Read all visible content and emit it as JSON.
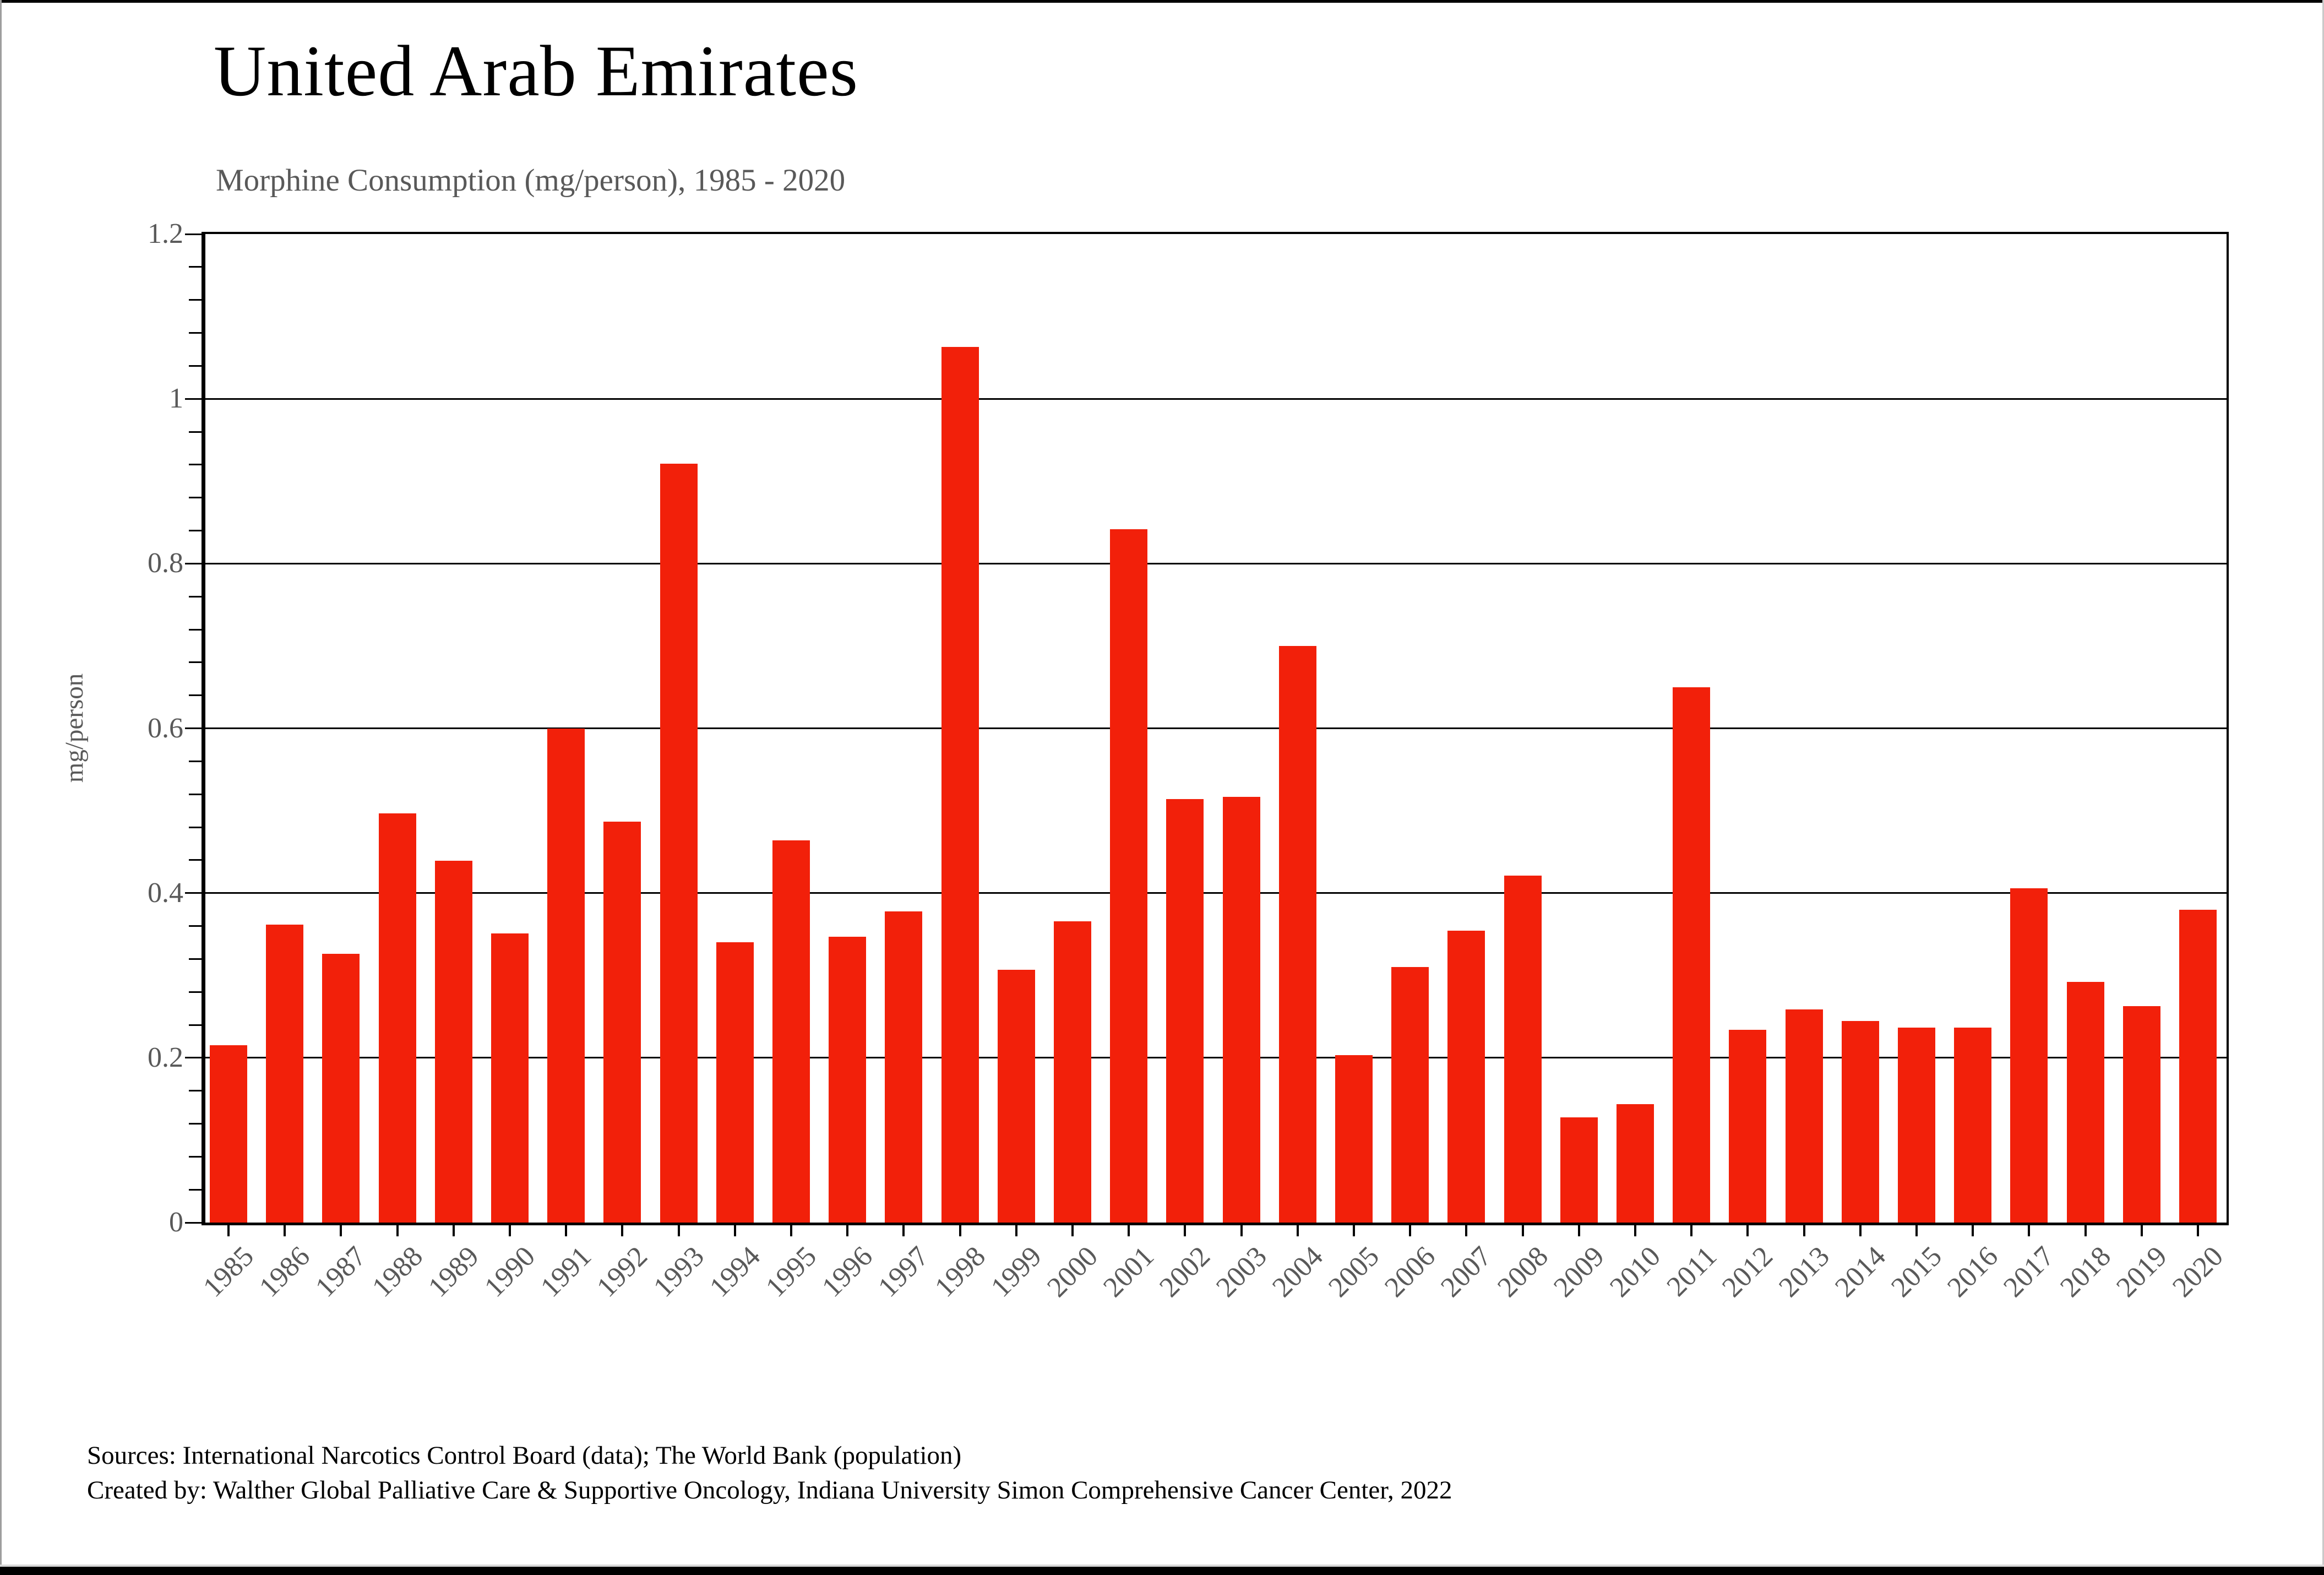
{
  "header": {
    "title": "United Arab Emirates",
    "subtitle": "Morphine Consumption (mg/person), 1985 - 2020"
  },
  "axes": {
    "ylabel": "mg/person",
    "ytick_labels": [
      "0",
      "0.2",
      "0.4",
      "0.6",
      "0.8",
      "1",
      "1.2"
    ]
  },
  "footer": {
    "line1": "Sources: International Narcotics Control Board (data); The World Bank (population)",
    "line2": "Created by: Walther  Global Palliative Care & Supportive Oncology, Indiana University Simon Comprehensive Cancer Center, 2022"
  },
  "chart_data": {
    "type": "bar",
    "title": "United Arab Emirates",
    "subtitle": "Morphine Consumption (mg/person), 1985 - 2020",
    "xlabel": "",
    "ylabel": "mg/person",
    "ylim": [
      0,
      1.2
    ],
    "yticks": [
      0,
      0.2,
      0.4,
      0.6,
      0.8,
      1,
      1.2
    ],
    "ytick_labels": [
      "0",
      "0.2",
      "0.4",
      "0.6",
      "0.8",
      "1",
      "1.2"
    ],
    "minor_tick_step": 0.04,
    "grid": true,
    "legend": "none",
    "bar_color": "#f2200a",
    "categories": [
      "1985",
      "1986",
      "1987",
      "1988",
      "1989",
      "1990",
      "1991",
      "1992",
      "1993",
      "1994",
      "1995",
      "1996",
      "1997",
      "1998",
      "1999",
      "2000",
      "2001",
      "2002",
      "2003",
      "2004",
      "2005",
      "2006",
      "2007",
      "2008",
      "2009",
      "2010",
      "2011",
      "2012",
      "2013",
      "2014",
      "2015",
      "2016",
      "2017",
      "2018",
      "2019",
      "2020"
    ],
    "values": [
      0.215,
      0.362,
      0.326,
      0.497,
      0.439,
      0.351,
      0.6,
      0.487,
      0.921,
      0.34,
      0.464,
      0.347,
      0.378,
      1.063,
      0.307,
      0.366,
      0.842,
      0.514,
      0.517,
      0.7,
      0.203,
      0.31,
      0.354,
      0.421,
      0.128,
      0.144,
      0.65,
      0.234,
      0.259,
      0.245,
      0.237,
      0.237,
      0.406,
      0.292,
      0.263,
      0.38
    ]
  }
}
